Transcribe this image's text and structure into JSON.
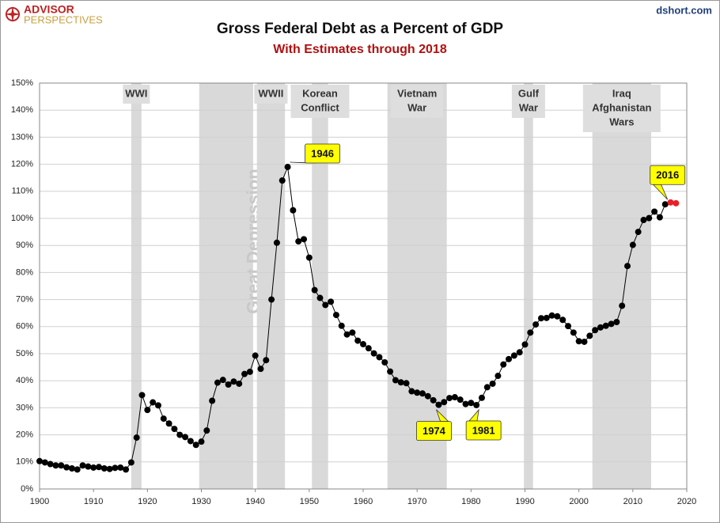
{
  "chart_data": {
    "type": "line",
    "title": "Gross Federal Debt as a Percent of GDP",
    "subtitle": "With Estimates through  2018",
    "source": "dshort.com",
    "logo": [
      "ADVISOR",
      "PERSPECTIVES"
    ],
    "xlim": [
      1900,
      2020
    ],
    "xticks": [
      1900,
      1910,
      1920,
      1930,
      1940,
      1950,
      1960,
      1970,
      1980,
      1990,
      2000,
      2010,
      2020
    ],
    "ylim": [
      0,
      150
    ],
    "yticks": [
      {
        "value": 0,
        "label": "0%"
      },
      {
        "value": 10,
        "label": "10%"
      },
      {
        "value": 20,
        "label": "20%"
      },
      {
        "value": 30,
        "label": "30%"
      },
      {
        "value": 40,
        "label": "40%"
      },
      {
        "value": 50,
        "label": "50%"
      },
      {
        "value": 60,
        "label": "60%"
      },
      {
        "value": 70,
        "label": "70%"
      },
      {
        "value": 80,
        "label": "80%"
      },
      {
        "value": 90,
        "label": "90%"
      },
      {
        "value": 100,
        "label": "100%"
      },
      {
        "value": 110,
        "label": "110%"
      },
      {
        "value": 120,
        "label": "120%"
      },
      {
        "value": 130,
        "label": "130%"
      },
      {
        "value": 140,
        "label": "140%"
      },
      {
        "value": 150,
        "label": "150%"
      }
    ],
    "grid": true,
    "line_color": "#000000",
    "series": [
      {
        "color": "#000000",
        "x": [
          1900,
          1901,
          1902,
          1903,
          1904,
          1905,
          1906,
          1907,
          1908,
          1909,
          1910,
          1911,
          1912,
          1913,
          1914,
          1915,
          1916,
          1917,
          1918,
          1919,
          1920,
          1921,
          1922,
          1923,
          1924,
          1925,
          1926,
          1927,
          1928,
          1929,
          1930,
          1931,
          1932,
          1933,
          1934,
          1935,
          1936,
          1937,
          1938,
          1939,
          1940,
          1941,
          1942,
          1943,
          1944,
          1945,
          1946,
          1947,
          1948,
          1949,
          1950,
          1951,
          1952,
          1953,
          1954,
          1955,
          1956,
          1957,
          1958,
          1959,
          1960,
          1961,
          1962,
          1963,
          1964,
          1965,
          1966,
          1967,
          1968,
          1969,
          1970,
          1971,
          1972,
          1973,
          1974,
          1975,
          1976,
          1977,
          1978,
          1979,
          1980,
          1981,
          1982,
          1983,
          1984,
          1985,
          1986,
          1987,
          1988,
          1989,
          1990,
          1991,
          1992,
          1993,
          1994,
          1995,
          1996,
          1997,
          1998,
          1999,
          2000,
          2001,
          2002,
          2003,
          2004,
          2005,
          2006,
          2007,
          2008,
          2009,
          2010,
          2011,
          2012,
          2013,
          2014,
          2015,
          2016
        ],
        "values": [
          10.3,
          9.8,
          9.2,
          8.7,
          8.7,
          8.0,
          7.6,
          7.2,
          8.7,
          8.3,
          7.9,
          8.1,
          7.6,
          7.4,
          7.8,
          7.9,
          7.2,
          9.8,
          19,
          34.7,
          29.2,
          32,
          30.9,
          26,
          24.2,
          22.2,
          20,
          19.2,
          17.7,
          16.3,
          17.5,
          21.6,
          32.6,
          39.3,
          40.3,
          38.6,
          39.7,
          38.9,
          42.5,
          43.3,
          49.3,
          44.4,
          47.6,
          70,
          91,
          114,
          119,
          103,
          91.5,
          92.3,
          85.5,
          73.5,
          70.6,
          68,
          69.2,
          64.3,
          60.3,
          57.1,
          57.8,
          54.8,
          53.5,
          52,
          50.1,
          48.7,
          46.8,
          43.4,
          40.2,
          39.4,
          39.1,
          36.1,
          35.6,
          35.3,
          34.3,
          32.8,
          31.1,
          32.1,
          33.6,
          33.9,
          33,
          31.4,
          31.8,
          31,
          33.7,
          37.6,
          38.9,
          41.8,
          46,
          48,
          49.3,
          50.5,
          53.4,
          57.8,
          60.8,
          63.1,
          63.2,
          64.1,
          63.8,
          62.5,
          60.2,
          57.8,
          54.6,
          54.4,
          56.6,
          58.7,
          59.7,
          60.3,
          61,
          61.7,
          67.7,
          82.4,
          90.2,
          95,
          99.4,
          100.1,
          102.5,
          100.4,
          105.2
        ]
      },
      {
        "color": "#e8202a",
        "x": [
          2017,
          2018
        ],
        "values": [
          105.9,
          105.6
        ]
      }
    ],
    "periods": [
      {
        "label": [
          "WWI"
        ],
        "start": 1917,
        "end": 1918.9
      },
      {
        "label": [
          "Great Depression"
        ],
        "start": 1929.6,
        "end": 1939.6,
        "rotated": true
      },
      {
        "label": [
          "WWII"
        ],
        "start": 1940.3,
        "end": 1945.5
      },
      {
        "label": [
          "Korean",
          "Conflict"
        ],
        "start": 1950.5,
        "end": 1953.5
      },
      {
        "label": [
          "Vietnam",
          "War"
        ],
        "start": 1964.5,
        "end": 1975.5
      },
      {
        "label": [
          "Gulf",
          "War"
        ],
        "start": 1989.8,
        "end": 1991.5
      },
      {
        "label": [
          "Iraq",
          "Afghanistan",
          "Wars"
        ],
        "start": 2002.5,
        "end": 2013.4
      }
    ],
    "annotations": [
      {
        "label": "1946"
      },
      {
        "label": "1974"
      },
      {
        "label": "1981"
      },
      {
        "label": "2016"
      }
    ]
  }
}
